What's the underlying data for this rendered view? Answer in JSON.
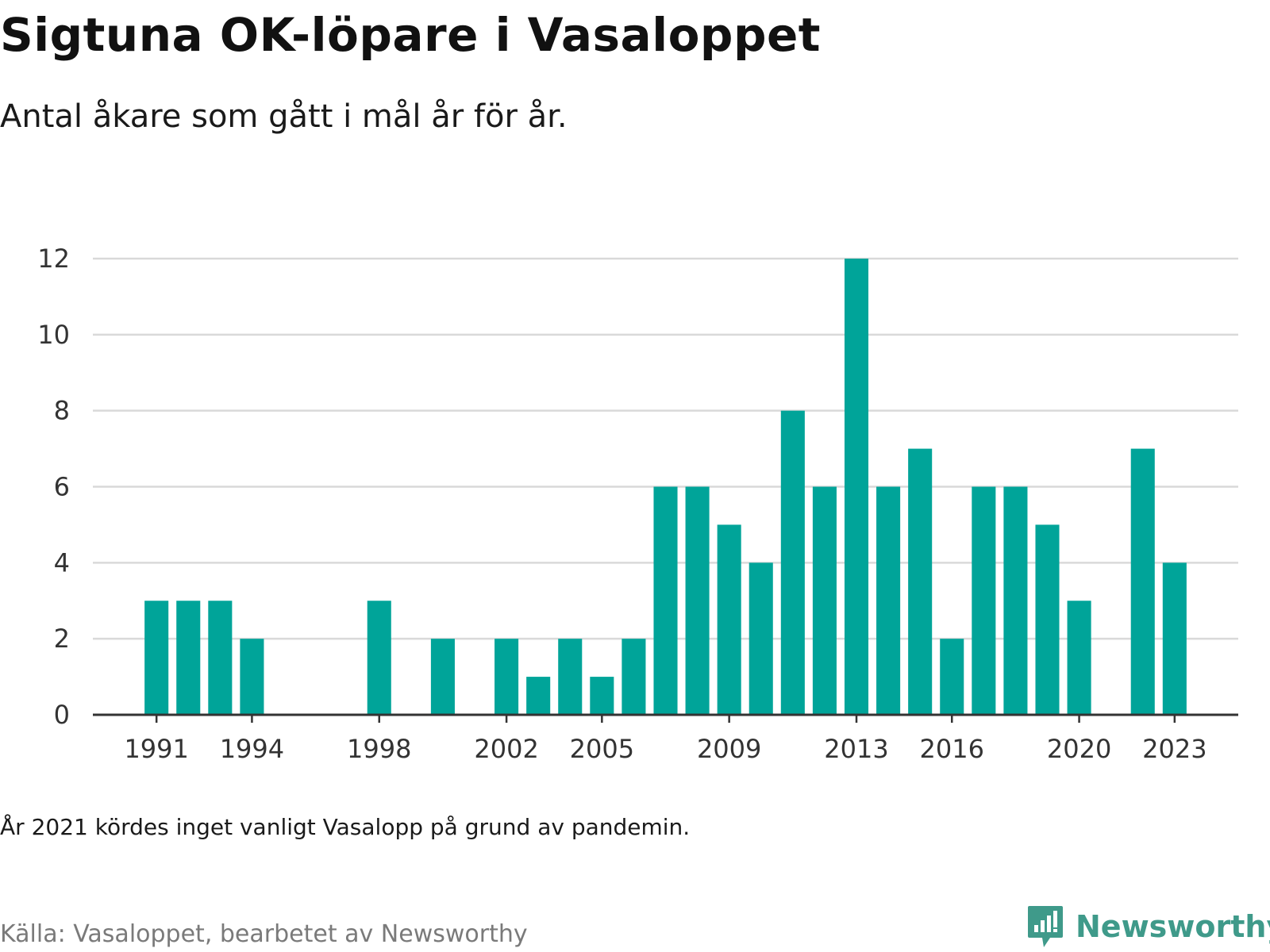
{
  "title": "Sigtuna OK-löpare i Vasaloppet",
  "subtitle": "Antal åkare som gått i mål år för år.",
  "note": "År 2021 kördes inget vanligt Vasalopp på grund av pandemin.",
  "source": "Källa: Vasaloppet, bearbetet av Newsworthy",
  "logo": {
    "text": "Newsworthy",
    "icon": "bar-chart-speech-bubble-icon"
  },
  "colors": {
    "bar": "#00a499",
    "grid": "#d9d9d9",
    "axis": "#333333",
    "logo": "#3f9a8a"
  },
  "chart_data": {
    "type": "bar",
    "title": "Sigtuna OK-löpare i Vasaloppet",
    "xlabel": "",
    "ylabel": "",
    "ylim": [
      0,
      12
    ],
    "yticks": [
      0,
      2,
      4,
      6,
      8,
      10,
      12
    ],
    "xticks": [
      "1991",
      "1994",
      "1998",
      "2002",
      "2005",
      "2009",
      "2013",
      "2016",
      "2020",
      "2023"
    ],
    "xlim": [
      1989,
      2025
    ],
    "grid": true,
    "legend": "none",
    "x": [
      1991,
      1992,
      1993,
      1994,
      1998,
      2000,
      2002,
      2003,
      2004,
      2005,
      2006,
      2007,
      2008,
      2009,
      2010,
      2011,
      2012,
      2013,
      2014,
      2015,
      2016,
      2017,
      2018,
      2019,
      2020,
      2022,
      2023
    ],
    "values": [
      3,
      3,
      3,
      2,
      3,
      2,
      2,
      1,
      2,
      1,
      2,
      6,
      6,
      5,
      4,
      8,
      6,
      12,
      6,
      7,
      2,
      6,
      6,
      5,
      3,
      7,
      4
    ]
  }
}
